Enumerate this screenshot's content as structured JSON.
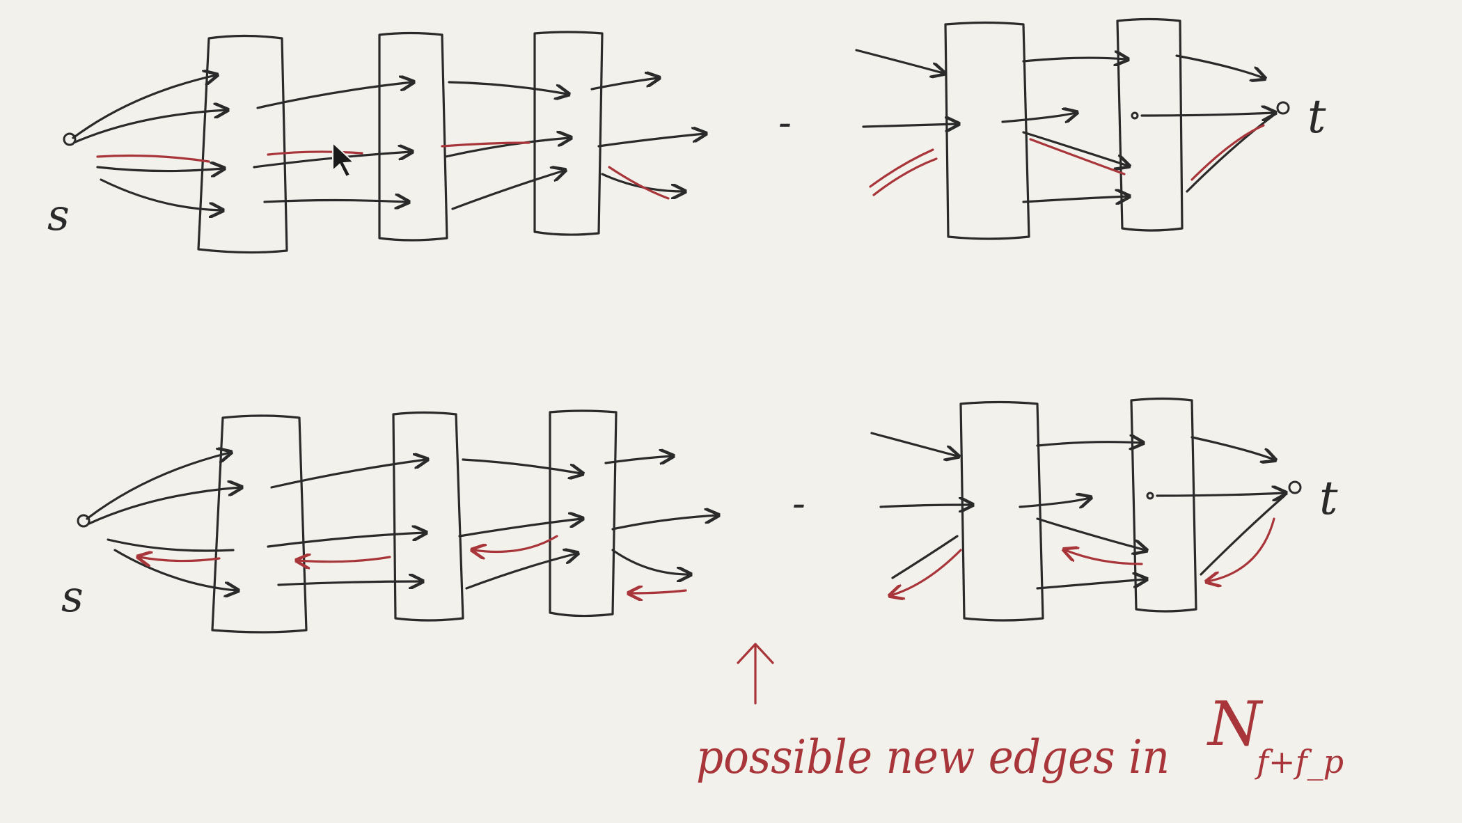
{
  "labels": {
    "source": "s",
    "sink": "t",
    "dash": "-"
  },
  "annotation": {
    "text": "possible new edges in",
    "symbol": "N",
    "subscript": "f+f_p"
  },
  "colors": {
    "ink": "#2a2a2a",
    "red_ink": "#a8353a",
    "paper": "#f3f1eb"
  },
  "icons": [
    "mouse-cursor-icon"
  ]
}
